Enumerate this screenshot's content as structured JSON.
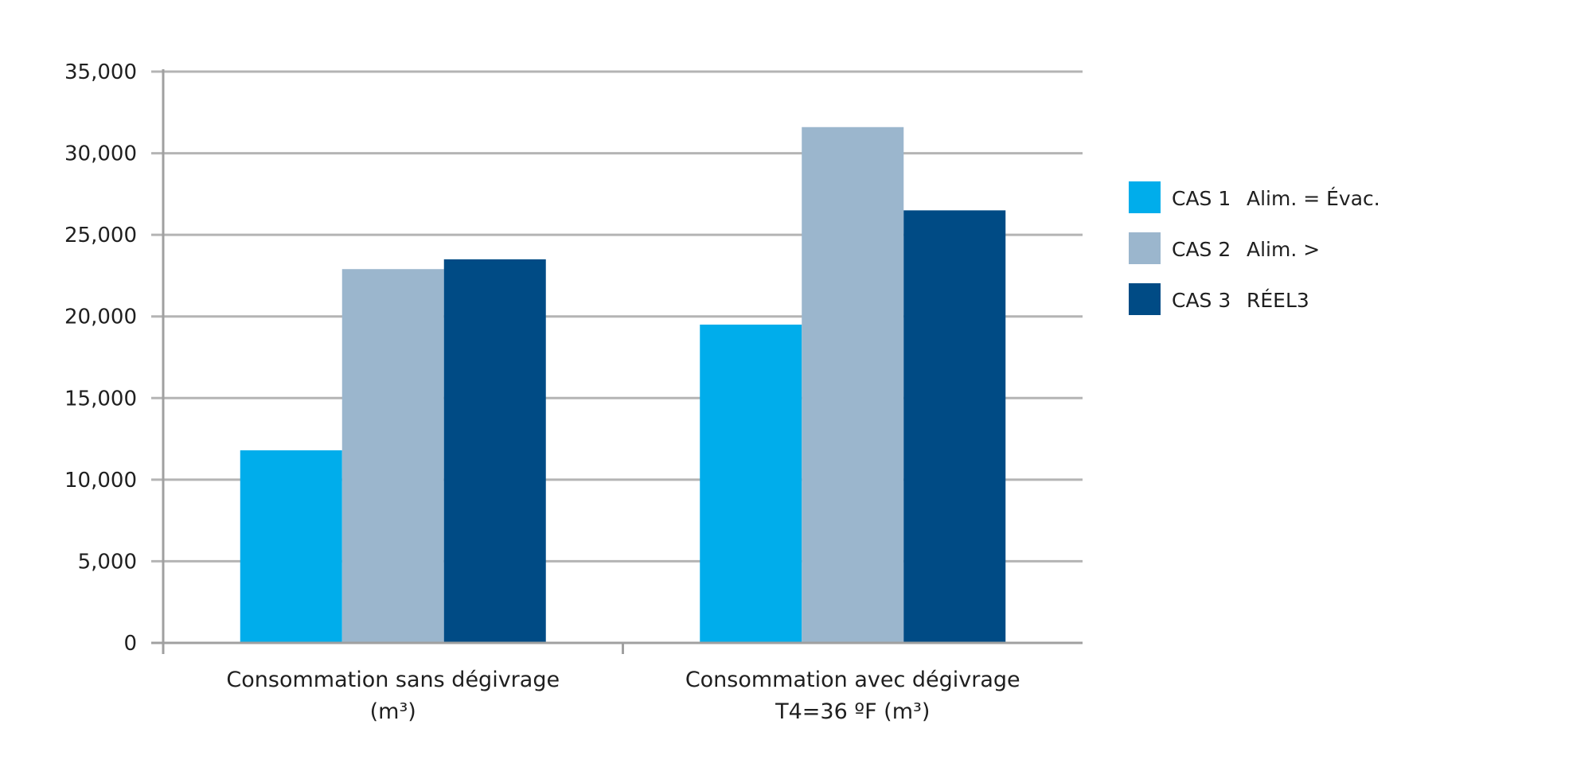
{
  "chart_data": {
    "type": "bar",
    "title": "",
    "xlabel": "",
    "ylabel": "",
    "ylim": [
      0,
      35000
    ],
    "grid": true,
    "legend_position": "right",
    "yticks": [
      "0",
      "5,000",
      "10,000",
      "15,000",
      "20,000",
      "25,000",
      "30,000",
      "35,000"
    ],
    "categories": [
      {
        "lines": [
          "Consommation sans dégivrage",
          "(m³)"
        ]
      },
      {
        "lines": [
          "Consommation avec dégivrage",
          "T4=36 ºF (m³)"
        ]
      }
    ],
    "series": [
      {
        "name": "CAS 1",
        "description": "Alim. = Évac.",
        "color": "#00adeb",
        "values": [
          11800,
          19500
        ]
      },
      {
        "name": "CAS 2",
        "description": "Alim. >",
        "color": "#9bb6cd",
        "values": [
          22900,
          31600
        ]
      },
      {
        "name": "CAS 3",
        "description": "RÉEL3",
        "color": "#004b85",
        "values": [
          23500,
          26500
        ]
      }
    ],
    "colors": {
      "grid": "#b4b4b4",
      "axis": "#a0a0a0",
      "text": "#1f1f1f"
    }
  }
}
